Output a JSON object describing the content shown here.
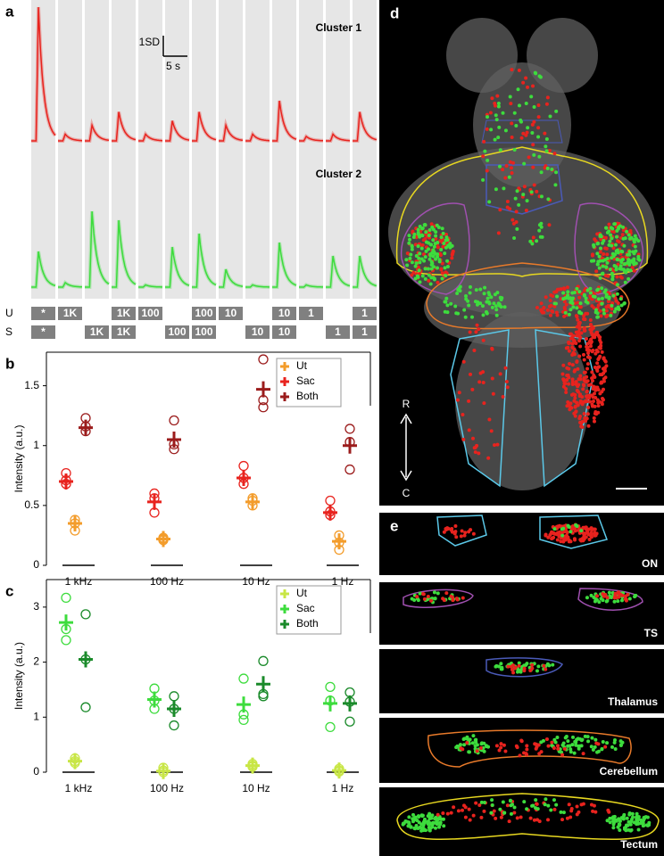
{
  "panel_a": {
    "label": "a",
    "scale_y": "1SD",
    "scale_x": "5 s",
    "clusters": [
      {
        "name": "Cluster 1",
        "color": "#e8231e",
        "peaks": [
          6,
          0.3,
          0.7,
          1.3,
          0.3,
          0.9,
          1.3,
          0.7,
          0.3,
          1.8,
          0.2,
          0.3,
          1.3
        ]
      },
      {
        "name": "Cluster 2",
        "color": "#3ddc3d",
        "peaks": [
          1.6,
          0.2,
          3.4,
          3,
          0.1,
          1.8,
          2.4,
          0.8,
          0.1,
          2,
          0.1,
          1.4,
          1.4
        ]
      }
    ],
    "rows": [
      {
        "name": "U",
        "stimuli": [
          "*",
          "1K",
          null,
          "1K",
          "100",
          null,
          "100",
          "10",
          null,
          "10",
          "1",
          null,
          "1"
        ]
      },
      {
        "name": "S",
        "stimuli": [
          "*",
          null,
          "1K",
          "1K",
          null,
          "100",
          "100",
          null,
          "10",
          "10",
          null,
          "1",
          "1"
        ]
      }
    ]
  },
  "chart_data": [
    {
      "type": "dot",
      "label": "b",
      "ylabel": "Intensity (a.u.)",
      "categories": [
        "1 kHz",
        "100 Hz",
        "10 Hz",
        "1 Hz"
      ],
      "ylim": [
        0,
        1.78
      ],
      "yticks": [
        0,
        0.5,
        1,
        1.5
      ],
      "legend": "upper right",
      "series": [
        {
          "name": "Ut",
          "color": "#f39c2b",
          "values": [
            0.35,
            0.22,
            0.53,
            0.2
          ],
          "points": [
            [
              0.38,
              0.35,
              0.29
            ],
            [
              0.23,
              0.22,
              0.21
            ],
            [
              0.56,
              0.54,
              0.5
            ],
            [
              0.25,
              0.19,
              0.13
            ]
          ]
        },
        {
          "name": "Sac",
          "color": "#e8231e",
          "values": [
            0.7,
            0.53,
            0.73,
            0.44
          ],
          "points": [
            [
              0.77,
              0.71,
              0.68
            ],
            [
              0.6,
              0.56,
              0.44
            ],
            [
              0.83,
              0.73,
              0.68
            ],
            [
              0.54,
              0.45,
              0.42
            ]
          ]
        },
        {
          "name": "Both",
          "color": "#9b1c1c",
          "values": [
            1.15,
            1.05,
            1.47,
            1
          ],
          "points": [
            [
              1.23,
              1.16,
              1.12
            ],
            [
              1.21,
              1.01,
              0.97
            ],
            [
              1.72,
              1.38,
              1.32
            ],
            [
              1.14,
              1.03,
              0.8
            ]
          ]
        }
      ]
    },
    {
      "type": "dot",
      "label": "c",
      "ylabel": "Intensity (a.u.)",
      "categories": [
        "1 kHz",
        "100 Hz",
        "10 Hz",
        "1 Hz"
      ],
      "ylim": [
        0,
        3.5
      ],
      "yticks": [
        0,
        1,
        2,
        3
      ],
      "legend": "upper right",
      "series": [
        {
          "name": "Ut",
          "color": "#c8e645",
          "values": [
            0.2,
            0.02,
            0.12,
            0.03
          ],
          "points": [
            [
              0.25,
              0.2,
              0.17
            ],
            [
              0.08,
              0.03,
              0
            ],
            [
              0.15,
              0.12,
              0.1
            ],
            [
              0.06,
              0.03,
              0.01
            ]
          ]
        },
        {
          "name": "Sac",
          "color": "#3ddc3d",
          "values": [
            2.72,
            1.32,
            1.23,
            1.25
          ],
          "points": [
            [
              3.17,
              2.6,
              2.4
            ],
            [
              1.52,
              1.3,
              1.15
            ],
            [
              1.7,
              1.05,
              0.95
            ],
            [
              1.55,
              1.3,
              0.82
            ]
          ]
        },
        {
          "name": "Both",
          "color": "#1a8a2a",
          "values": [
            2.05,
            1.15,
            1.6,
            1.25
          ],
          "points": [
            [
              2.87,
              2.05,
              1.18
            ],
            [
              1.38,
              1.15,
              0.85
            ],
            [
              2.02,
              1.42,
              1.38
            ],
            [
              1.45,
              1.28,
              0.92
            ]
          ]
        }
      ]
    }
  ],
  "panel_d": {
    "label": "d",
    "rostral": "R",
    "caudal": "C"
  },
  "panel_e": {
    "label": "e",
    "regions": [
      "ON",
      "TS",
      "Thalamus",
      "Cerebellum",
      "Tectum"
    ]
  }
}
